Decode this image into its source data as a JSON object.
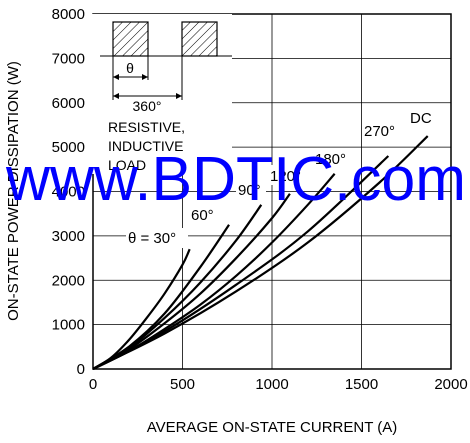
{
  "chart_data": {
    "type": "line",
    "xlabel": "AVERAGE ON-STATE CURRENT  (A)",
    "ylabel": "ON-STATE POWER DISSIPATION  (W)",
    "xlim": [
      0,
      2000
    ],
    "ylim": [
      0,
      8000
    ],
    "xticks": [
      "0",
      "500",
      "1000",
      "1500",
      "2000"
    ],
    "yticks": [
      "0",
      "1000",
      "2000",
      "3000",
      "4000",
      "5000",
      "6000",
      "7000",
      "8000"
    ],
    "grid": true,
    "series": [
      {
        "name": "θ = 30°",
        "x": [
          0,
          100,
          200,
          300,
          400,
          500,
          540
        ],
        "y": [
          0,
          250,
          650,
          1150,
          1700,
          2350,
          2700
        ]
      },
      {
        "name": "60°",
        "x": [
          0,
          200,
          400,
          600,
          760
        ],
        "y": [
          0,
          500,
          1250,
          2300,
          3250
        ]
      },
      {
        "name": "90°",
        "x": [
          0,
          200,
          400,
          600,
          800,
          940
        ],
        "y": [
          0,
          470,
          1150,
          1950,
          2900,
          3700
        ]
      },
      {
        "name": "120°",
        "x": [
          0,
          200,
          400,
          600,
          800,
          1000,
          1100
        ],
        "y": [
          0,
          440,
          1030,
          1700,
          2500,
          3400,
          3950
        ]
      },
      {
        "name": "180°",
        "x": [
          0,
          200,
          400,
          600,
          800,
          1000,
          1200,
          1350
        ],
        "y": [
          0,
          400,
          900,
          1450,
          2100,
          2850,
          3700,
          4400
        ]
      },
      {
        "name": "270°",
        "x": [
          0,
          400,
          800,
          1200,
          1650
        ],
        "y": [
          0,
          850,
          1900,
          3100,
          4800
        ]
      },
      {
        "name": "DC",
        "x": [
          0,
          400,
          800,
          1200,
          1600,
          1870
        ],
        "y": [
          0,
          800,
          1750,
          2850,
          4200,
          5250
        ]
      }
    ],
    "labels": {
      "s30": "θ = 30°",
      "s60": "60°",
      "s90": "90°",
      "s120": "120°",
      "s180": "180°",
      "s270": "270°",
      "sdc": "DC"
    },
    "inset": {
      "theta": "θ",
      "period": "360°",
      "load1": "RESISTIVE,",
      "load2": "INDUCTIVE",
      "load3": "LOAD"
    },
    "watermark": "www.BDTIC.com",
    "colors": {
      "curves": "#000000",
      "grid": "#000000",
      "watermark": "#0000ff"
    }
  }
}
